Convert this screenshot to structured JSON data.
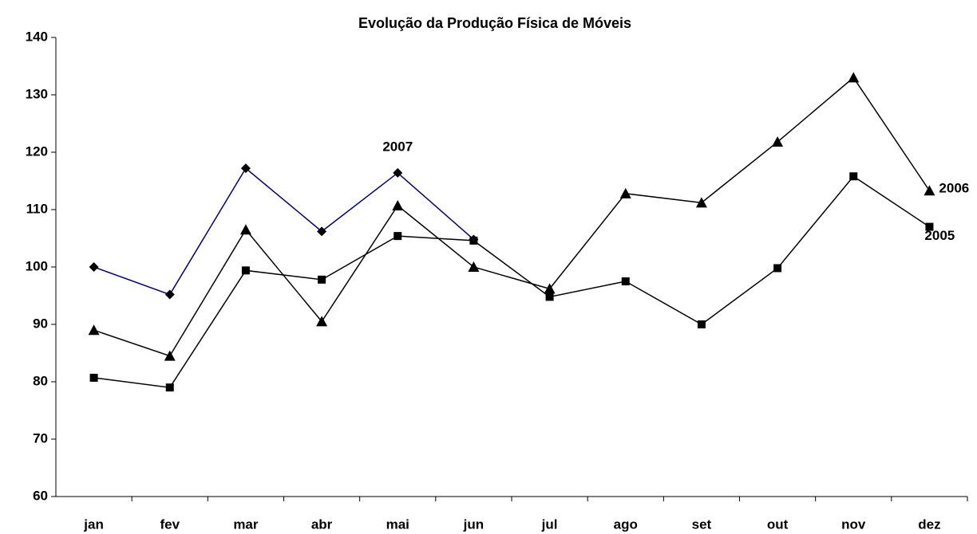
{
  "chart_data": {
    "type": "line",
    "title": "Evolução da Produção Física de Móveis",
    "categories": [
      "jan",
      "fev",
      "mar",
      "abr",
      "mai",
      "jun",
      "jul",
      "ago",
      "set",
      "out",
      "nov",
      "dez"
    ],
    "series": [
      {
        "name": "2007",
        "color": "#000080",
        "marker": "diamond",
        "values": [
          100,
          95.2,
          117.2,
          106.2,
          116.4,
          104.8,
          null,
          null,
          null,
          null,
          null,
          null
        ]
      },
      {
        "name": "2006",
        "color": "#000000",
        "marker": "triangle",
        "values": [
          89,
          84.5,
          106.5,
          90.5,
          110.7,
          100,
          96.2,
          112.8,
          111.2,
          121.8,
          133,
          113.3
        ]
      },
      {
        "name": "2005",
        "color": "#000000",
        "marker": "square",
        "values": [
          80.7,
          79,
          99.4,
          97.8,
          105.4,
          104.6,
          94.8,
          97.5,
          90,
          99.8,
          115.8,
          107
        ]
      }
    ],
    "ylim": [
      60,
      140
    ],
    "yticks": [
      60,
      70,
      80,
      90,
      100,
      110,
      120,
      130,
      140
    ],
    "grid": false
  }
}
